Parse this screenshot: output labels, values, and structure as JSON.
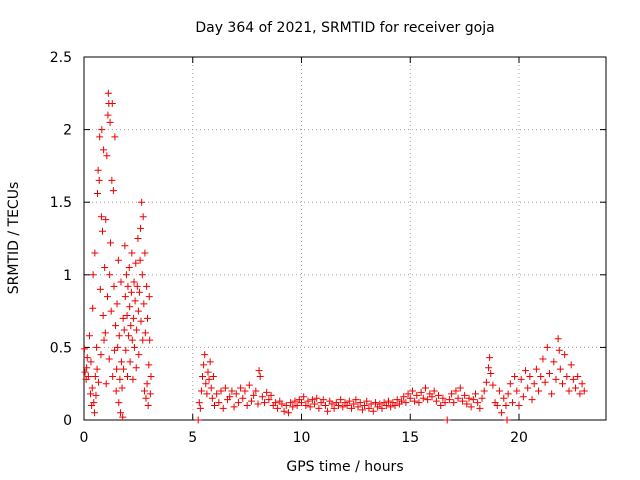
{
  "chart_data": {
    "type": "scatter",
    "title": "Day 364 of 2021, SRMTID for receiver goja",
    "xlabel": "GPS time / hours",
    "ylabel": "SRMTID / TECUs",
    "xlim": [
      0,
      24
    ],
    "ylim": [
      0,
      2.5
    ],
    "x_ticks": [
      0,
      5,
      10,
      15,
      20
    ],
    "y_ticks": [
      0,
      0.5,
      1,
      1.5,
      2,
      2.5
    ],
    "x_tick_labels": [
      "0",
      "5",
      "10",
      "15",
      "20"
    ],
    "y_tick_labels": [
      "0",
      "0.5",
      "1",
      "1.5",
      "2",
      "2.5"
    ],
    "grid": true,
    "marker": "+",
    "color": "#ee0000",
    "series": [
      {
        "name": "SRMTID",
        "points": [
          [
            0.02,
            0.49
          ],
          [
            0.05,
            0.33
          ],
          [
            0.1,
            0.28
          ],
          [
            0.12,
            0.36
          ],
          [
            0.15,
            0.43
          ],
          [
            0.2,
            0.3
          ],
          [
            0.25,
            0.58
          ],
          [
            0.3,
            0.18
          ],
          [
            0.32,
            0.4
          ],
          [
            0.35,
            0.1
          ],
          [
            0.38,
            0.22
          ],
          [
            0.4,
            0.77
          ],
          [
            0.42,
            1.0
          ],
          [
            0.45,
            0.12
          ],
          [
            0.48,
            0.05
          ],
          [
            0.5,
            1.15
          ],
          [
            0.52,
            0.3
          ],
          [
            0.55,
            0.17
          ],
          [
            0.58,
            0.5
          ],
          [
            0.6,
            0.35
          ],
          [
            0.62,
            1.56
          ],
          [
            0.65,
            1.72
          ],
          [
            0.67,
            0.26
          ],
          [
            0.7,
            1.65
          ],
          [
            0.72,
            1.95
          ],
          [
            0.75,
            0.9
          ],
          [
            0.78,
            0.45
          ],
          [
            0.8,
            1.4
          ],
          [
            0.82,
            2.0
          ],
          [
            0.85,
            1.3
          ],
          [
            0.88,
            0.72
          ],
          [
            0.9,
            1.86
          ],
          [
            0.92,
            0.55
          ],
          [
            0.95,
            1.05
          ],
          [
            0.98,
            0.6
          ],
          [
            1.0,
            1.38
          ],
          [
            1.02,
            0.25
          ],
          [
            1.05,
            1.82
          ],
          [
            1.08,
            0.85
          ],
          [
            1.1,
            2.1
          ],
          [
            1.12,
            2.25
          ],
          [
            1.14,
            2.18
          ],
          [
            1.16,
            0.42
          ],
          [
            1.18,
            1.0
          ],
          [
            1.2,
            2.05
          ],
          [
            1.22,
            1.22
          ],
          [
            1.25,
            0.75
          ],
          [
            1.28,
            1.65
          ],
          [
            1.3,
            2.18
          ],
          [
            1.32,
            0.3
          ],
          [
            1.35,
            1.58
          ],
          [
            1.38,
            0.92
          ],
          [
            1.4,
            0.48
          ],
          [
            1.42,
            1.95
          ],
          [
            1.45,
            0.65
          ],
          [
            1.48,
            0.2
          ],
          [
            1.5,
            0.35
          ],
          [
            1.52,
            0.8
          ],
          [
            1.55,
            0.5
          ],
          [
            1.58,
            1.1
          ],
          [
            1.6,
            0.12
          ],
          [
            1.62,
            0.58
          ],
          [
            1.65,
            0.28
          ],
          [
            1.68,
            0.05
          ],
          [
            1.7,
            0.95
          ],
          [
            1.72,
            0.4
          ],
          [
            1.75,
            0.22
          ],
          [
            1.78,
            0.02
          ],
          [
            1.8,
            0.7
          ],
          [
            1.82,
            0.35
          ],
          [
            1.85,
            0.62
          ],
          [
            1.88,
            1.2
          ],
          [
            1.9,
            0.85
          ],
          [
            1.92,
            0.48
          ],
          [
            1.95,
            1.0
          ],
          [
            1.98,
            0.72
          ],
          [
            2.0,
            0.3
          ],
          [
            2.02,
            0.92
          ],
          [
            2.05,
            0.58
          ],
          [
            2.08,
            1.05
          ],
          [
            2.1,
            0.78
          ],
          [
            2.12,
            0.4
          ],
          [
            2.15,
            0.65
          ],
          [
            2.18,
            0.88
          ],
          [
            2.2,
            1.15
          ],
          [
            2.22,
            0.55
          ],
          [
            2.25,
            0.28
          ],
          [
            2.28,
            0.7
          ],
          [
            2.3,
            0.95
          ],
          [
            2.32,
            0.5
          ],
          [
            2.35,
            0.82
          ],
          [
            2.38,
            1.08
          ],
          [
            2.4,
            0.36
          ],
          [
            2.42,
            0.62
          ],
          [
            2.45,
            0.92
          ],
          [
            2.48,
            1.25
          ],
          [
            2.5,
            0.75
          ],
          [
            2.52,
            0.45
          ],
          [
            2.55,
            0.88
          ],
          [
            2.58,
            1.1
          ],
          [
            2.6,
            1.32
          ],
          [
            2.62,
            0.68
          ],
          [
            2.65,
            1.5
          ],
          [
            2.68,
            1.0
          ],
          [
            2.7,
            0.55
          ],
          [
            2.72,
            1.4
          ],
          [
            2.75,
            0.8
          ],
          [
            2.78,
            0.2
          ],
          [
            2.8,
            1.15
          ],
          [
            2.82,
            0.6
          ],
          [
            2.85,
            0.15
          ],
          [
            2.88,
            0.92
          ],
          [
            2.9,
            0.25
          ],
          [
            2.92,
            0.7
          ],
          [
            2.95,
            0.1
          ],
          [
            2.98,
            0.38
          ],
          [
            3.0,
            0.85
          ],
          [
            3.02,
            0.55
          ],
          [
            3.05,
            0.18
          ],
          [
            3.08,
            0.3
          ],
          [
            5.25,
            0.0
          ],
          [
            5.3,
            0.12
          ],
          [
            5.35,
            0.08
          ],
          [
            5.4,
            0.2
          ],
          [
            5.45,
            0.3
          ],
          [
            5.5,
            0.38
          ],
          [
            5.55,
            0.45
          ],
          [
            5.6,
            0.25
          ],
          [
            5.65,
            0.18
          ],
          [
            5.7,
            0.33
          ],
          [
            5.75,
            0.28
          ],
          [
            5.8,
            0.4
          ],
          [
            5.85,
            0.22
          ],
          [
            5.9,
            0.15
          ],
          [
            5.95,
            0.3
          ],
          [
            6.0,
            0.1
          ],
          [
            6.1,
            0.18
          ],
          [
            6.2,
            0.12
          ],
          [
            6.3,
            0.2
          ],
          [
            6.4,
            0.08
          ],
          [
            6.5,
            0.22
          ],
          [
            6.6,
            0.14
          ],
          [
            6.7,
            0.16
          ],
          [
            6.8,
            0.2
          ],
          [
            6.9,
            0.09
          ],
          [
            7.0,
            0.18
          ],
          [
            7.1,
            0.12
          ],
          [
            7.2,
            0.22
          ],
          [
            7.3,
            0.15
          ],
          [
            7.4,
            0.2
          ],
          [
            7.5,
            0.1
          ],
          [
            7.6,
            0.24
          ],
          [
            7.7,
            0.13
          ],
          [
            7.8,
            0.17
          ],
          [
            7.9,
            0.2
          ],
          [
            8.0,
            0.11
          ],
          [
            8.05,
            0.34
          ],
          [
            8.1,
            0.3
          ],
          [
            8.2,
            0.16
          ],
          [
            8.3,
            0.12
          ],
          [
            8.4,
            0.19
          ],
          [
            8.5,
            0.14
          ],
          [
            8.6,
            0.17
          ],
          [
            8.7,
            0.1
          ],
          [
            8.8,
            0.12
          ],
          [
            8.9,
            0.08
          ],
          [
            9.0,
            0.13
          ],
          [
            9.1,
            0.11
          ],
          [
            9.2,
            0.06
          ],
          [
            9.3,
            0.1
          ],
          [
            9.4,
            0.05
          ],
          [
            9.5,
            0.12
          ],
          [
            9.6,
            0.09
          ],
          [
            9.7,
            0.13
          ],
          [
            9.8,
            0.1
          ],
          [
            9.9,
            0.14
          ],
          [
            10.0,
            0.12
          ],
          [
            10.1,
            0.16
          ],
          [
            10.2,
            0.1
          ],
          [
            10.3,
            0.13
          ],
          [
            10.4,
            0.09
          ],
          [
            10.5,
            0.14
          ],
          [
            10.6,
            0.11
          ],
          [
            10.7,
            0.15
          ],
          [
            10.8,
            0.08
          ],
          [
            10.9,
            0.12
          ],
          [
            11.0,
            0.14
          ],
          [
            11.1,
            0.1
          ],
          [
            11.2,
            0.06
          ],
          [
            11.3,
            0.13
          ],
          [
            11.4,
            0.11
          ],
          [
            11.5,
            0.08
          ],
          [
            11.6,
            0.12
          ],
          [
            11.7,
            0.1
          ],
          [
            11.8,
            0.14
          ],
          [
            11.9,
            0.09
          ],
          [
            12.0,
            0.12
          ],
          [
            12.1,
            0.1
          ],
          [
            12.2,
            0.13
          ],
          [
            12.3,
            0.08
          ],
          [
            12.4,
            0.11
          ],
          [
            12.5,
            0.14
          ],
          [
            12.6,
            0.09
          ],
          [
            12.7,
            0.12
          ],
          [
            12.8,
            0.07
          ],
          [
            12.9,
            0.1
          ],
          [
            13.0,
            0.13
          ],
          [
            13.1,
            0.08
          ],
          [
            13.2,
            0.11
          ],
          [
            13.3,
            0.06
          ],
          [
            13.4,
            0.12
          ],
          [
            13.5,
            0.09
          ],
          [
            13.6,
            0.11
          ],
          [
            13.7,
            0.08
          ],
          [
            13.8,
            0.12
          ],
          [
            13.9,
            0.1
          ],
          [
            14.0,
            0.13
          ],
          [
            14.1,
            0.09
          ],
          [
            14.2,
            0.12
          ],
          [
            14.3,
            0.1
          ],
          [
            14.4,
            0.14
          ],
          [
            14.5,
            0.11
          ],
          [
            14.6,
            0.13
          ],
          [
            14.7,
            0.16
          ],
          [
            14.8,
            0.12
          ],
          [
            14.9,
            0.18
          ],
          [
            15.0,
            0.15
          ],
          [
            15.1,
            0.2
          ],
          [
            15.2,
            0.13
          ],
          [
            15.3,
            0.17
          ],
          [
            15.4,
            0.12
          ],
          [
            15.5,
            0.19
          ],
          [
            15.6,
            0.15
          ],
          [
            15.7,
            0.22
          ],
          [
            15.8,
            0.14
          ],
          [
            15.9,
            0.18
          ],
          [
            16.0,
            0.16
          ],
          [
            16.1,
            0.2
          ],
          [
            16.2,
            0.13
          ],
          [
            16.3,
            0.17
          ],
          [
            16.4,
            0.1
          ],
          [
            16.5,
            0.15
          ],
          [
            16.6,
            0.12
          ],
          [
            16.7,
            0.0
          ],
          [
            16.8,
            0.14
          ],
          [
            16.9,
            0.18
          ],
          [
            17.0,
            0.12
          ],
          [
            17.1,
            0.2
          ],
          [
            17.2,
            0.15
          ],
          [
            17.3,
            0.22
          ],
          [
            17.4,
            0.13
          ],
          [
            17.5,
            0.17
          ],
          [
            17.6,
            0.11
          ],
          [
            17.7,
            0.15
          ],
          [
            17.8,
            0.09
          ],
          [
            17.9,
            0.14
          ],
          [
            18.0,
            0.18
          ],
          [
            18.1,
            0.12
          ],
          [
            18.2,
            0.08
          ],
          [
            18.3,
            0.15
          ],
          [
            18.4,
            0.2
          ],
          [
            18.5,
            0.26
          ],
          [
            18.6,
            0.36
          ],
          [
            18.65,
            0.43
          ],
          [
            18.7,
            0.32
          ],
          [
            18.8,
            0.24
          ],
          [
            18.9,
            0.12
          ],
          [
            19.0,
            0.1
          ],
          [
            19.1,
            0.2
          ],
          [
            19.2,
            0.05
          ],
          [
            19.3,
            0.15
          ],
          [
            19.4,
            0.1
          ],
          [
            19.45,
            0.0
          ],
          [
            19.5,
            0.18
          ],
          [
            19.6,
            0.25
          ],
          [
            19.7,
            0.12
          ],
          [
            19.8,
            0.3
          ],
          [
            19.9,
            0.2
          ],
          [
            20.0,
            0.1
          ],
          [
            20.1,
            0.28
          ],
          [
            20.2,
            0.16
          ],
          [
            20.3,
            0.34
          ],
          [
            20.4,
            0.22
          ],
          [
            20.5,
            0.3
          ],
          [
            20.6,
            0.14
          ],
          [
            20.7,
            0.25
          ],
          [
            20.8,
            0.35
          ],
          [
            20.9,
            0.2
          ],
          [
            21.0,
            0.3
          ],
          [
            21.1,
            0.42
          ],
          [
            21.2,
            0.26
          ],
          [
            21.3,
            0.5
          ],
          [
            21.4,
            0.32
          ],
          [
            21.5,
            0.18
          ],
          [
            21.6,
            0.4
          ],
          [
            21.7,
            0.28
          ],
          [
            21.8,
            0.56
          ],
          [
            21.85,
            0.48
          ],
          [
            21.9,
            0.35
          ],
          [
            22.0,
            0.25
          ],
          [
            22.1,
            0.45
          ],
          [
            22.2,
            0.3
          ],
          [
            22.3,
            0.2
          ],
          [
            22.4,
            0.38
          ],
          [
            22.5,
            0.28
          ],
          [
            22.6,
            0.22
          ],
          [
            22.7,
            0.3
          ],
          [
            22.8,
            0.18
          ],
          [
            22.9,
            0.25
          ],
          [
            23.0,
            0.2
          ]
        ]
      }
    ]
  }
}
